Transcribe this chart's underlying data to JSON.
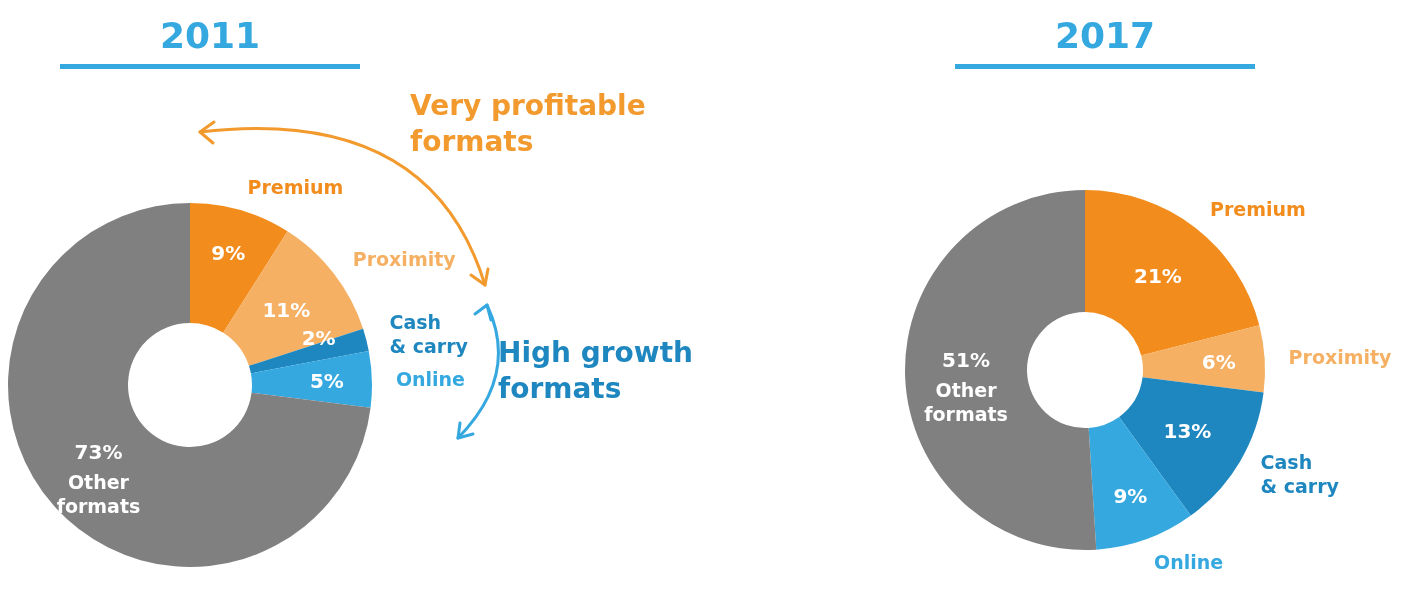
{
  "chart_data": [
    {
      "type": "donut",
      "title": "2011",
      "categories": [
        "Premium",
        "Proximity",
        "Cash & carry",
        "Online",
        "Other formats"
      ],
      "values": [
        9,
        11,
        2,
        5,
        73
      ],
      "value_labels": [
        "9%",
        "11%",
        "2%",
        "5%",
        "73%"
      ],
      "colors": [
        "#f28c1c",
        "#f5b063",
        "#1f87bf",
        "#35a8e0",
        "#808080"
      ],
      "annotations": [
        "Very profitable formats",
        "High growth formats"
      ]
    },
    {
      "type": "donut",
      "title": "2017",
      "categories": [
        "Premium",
        "Proximity",
        "Cash & carry",
        "Online",
        "Other formats"
      ],
      "values": [
        21,
        6,
        13,
        9,
        51
      ],
      "value_labels": [
        "21%",
        "6%",
        "13%",
        "9%",
        "51%"
      ],
      "colors": [
        "#f28c1c",
        "#f5b063",
        "#1f87bf",
        "#35a8e0",
        "#808080"
      ]
    }
  ]
}
